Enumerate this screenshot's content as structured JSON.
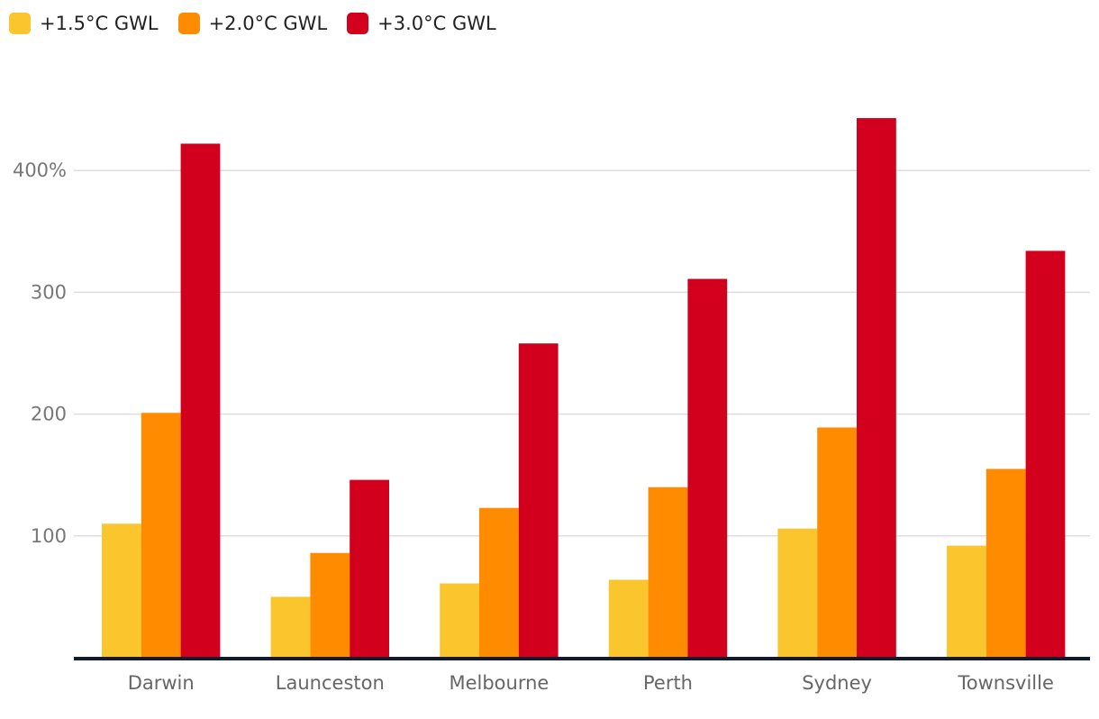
{
  "chart_data": {
    "type": "bar",
    "categories": [
      "Darwin",
      "Launceston",
      "Melbourne",
      "Perth",
      "Sydney",
      "Townsville"
    ],
    "series": [
      {
        "name": "+1.5°C GWL",
        "color": "#fbc52e",
        "values": [
          110,
          50,
          61,
          64,
          106,
          92
        ]
      },
      {
        "name": "+2.0°C GWL",
        "color": "#ff8c00",
        "values": [
          201,
          86,
          123,
          140,
          189,
          155
        ]
      },
      {
        "name": "+3.0°C GWL",
        "color": "#d2001c",
        "values": [
          422,
          146,
          258,
          311,
          443,
          334
        ]
      }
    ],
    "ylim": [
      0,
      443
    ],
    "yticks": [
      {
        "value": 100,
        "label": "100"
      },
      {
        "value": 200,
        "label": "200"
      },
      {
        "value": 300,
        "label": "300"
      },
      {
        "value": 400,
        "label": "400%"
      }
    ],
    "grid": true,
    "legend_position": "top-left"
  }
}
